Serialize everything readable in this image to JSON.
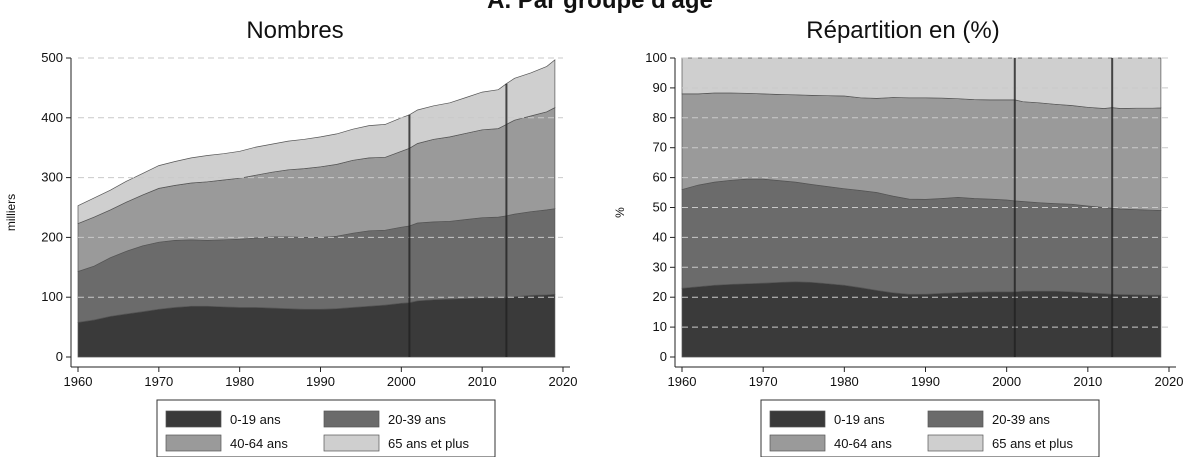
{
  "figure_title": "A. Par groupe d'âge",
  "colors": {
    "0-19 ans": "#3a3a3a",
    "20-39 ans": "#6b6b6b",
    "40-64 ans": "#9a9a9a",
    "65 ans et plus": "#cfcfcf"
  },
  "chart_data": [
    {
      "type": "area",
      "stacked": true,
      "title": "Nombres",
      "xlabel": "",
      "ylabel": "milliers",
      "xlim": [
        1960,
        2020
      ],
      "ylim": [
        0,
        500
      ],
      "xticks": [
        1960,
        1970,
        1980,
        1990,
        2000,
        2010,
        2020
      ],
      "yticks": [
        0,
        100,
        200,
        300,
        400,
        500
      ],
      "grid": "horizontal dashed",
      "legend": "bottom",
      "x": [
        1960,
        1962,
        1964,
        1966,
        1968,
        1970,
        1972,
        1974,
        1976,
        1978,
        1980,
        1982,
        1984,
        1986,
        1988,
        1990,
        1992,
        1994,
        1996,
        1998,
        2000,
        2001,
        2002,
        2004,
        2006,
        2008,
        2010,
        2012,
        2013,
        2014,
        2016,
        2018,
        2019
      ],
      "series": [
        {
          "name": "0-19 ans",
          "values": [
            58,
            62,
            68,
            72,
            76,
            80,
            83,
            85,
            85,
            84,
            83,
            83,
            82,
            81,
            80,
            80,
            81,
            83,
            85,
            87,
            90,
            91,
            94,
            96,
            97,
            98,
            99,
            99,
            99,
            101,
            103,
            104,
            105
          ]
        },
        {
          "name": "20-39 ans",
          "values": [
            85,
            90,
            98,
            105,
            110,
            112,
            112,
            111,
            110,
            112,
            114,
            116,
            119,
            120,
            120,
            120,
            121,
            124,
            126,
            125,
            127,
            128,
            130,
            130,
            130,
            132,
            134,
            135,
            137,
            138,
            140,
            142,
            143
          ]
        },
        {
          "name": "40-64 ans",
          "values": [
            80,
            82,
            80,
            82,
            85,
            90,
            92,
            95,
            98,
            100,
            102,
            105,
            108,
            112,
            115,
            118,
            120,
            122,
            122,
            122,
            127,
            130,
            133,
            138,
            141,
            144,
            147,
            148,
            153,
            157,
            160,
            164,
            169
          ]
        },
        {
          "name": "65 ans et plus",
          "values": [
            30,
            32,
            33,
            35,
            36,
            38,
            40,
            42,
            44,
            44,
            45,
            47,
            47,
            48,
            49,
            50,
            51,
            52,
            54,
            55,
            56,
            56,
            56,
            56,
            57,
            60,
            63,
            65,
            68,
            70,
            72,
            76,
            80
          ]
        }
      ],
      "vlines": [
        2001,
        2013
      ]
    },
    {
      "type": "area",
      "stacked": true,
      "title": "Répartition en (%)",
      "xlabel": "",
      "ylabel": "%",
      "xlim": [
        1960,
        2020
      ],
      "ylim": [
        0,
        100
      ],
      "xticks": [
        1960,
        1970,
        1980,
        1990,
        2000,
        2010,
        2020
      ],
      "yticks": [
        0,
        10,
        20,
        30,
        40,
        50,
        60,
        70,
        80,
        90,
        100
      ],
      "grid": "horizontal dashed",
      "legend": "bottom",
      "x": [
        1960,
        1962,
        1964,
        1966,
        1968,
        1970,
        1972,
        1974,
        1976,
        1978,
        1980,
        1982,
        1984,
        1986,
        1988,
        1990,
        1992,
        1994,
        1996,
        1998,
        2000,
        2001,
        2002,
        2004,
        2006,
        2008,
        2010,
        2012,
        2013,
        2014,
        2016,
        2018,
        2019
      ],
      "series": [
        {
          "name": "0-19 ans",
          "values": [
            23,
            23.5,
            24,
            24.3,
            24.5,
            24.7,
            25,
            25.2,
            25,
            24.5,
            24,
            23.2,
            22.3,
            21.5,
            21,
            21,
            21.3,
            21.5,
            21.7,
            21.8,
            21.8,
            21.8,
            22,
            22,
            22,
            21.8,
            21.5,
            21.2,
            21,
            20.9,
            20.8,
            20.7,
            20.7
          ]
        },
        {
          "name": "20-39 ans",
          "values": [
            33,
            34,
            34.5,
            34.8,
            35,
            34.8,
            34,
            33.3,
            32.7,
            32.5,
            32.3,
            32.5,
            32.7,
            32.3,
            31.8,
            31.7,
            31.7,
            31.9,
            31.3,
            31,
            30.7,
            30.4,
            30,
            29.6,
            29.3,
            29.3,
            29,
            28.8,
            28.7,
            28.6,
            28.5,
            28.4,
            28.3
          ]
        },
        {
          "name": "40-64 ans",
          "values": [
            32,
            30.5,
            29.8,
            29.2,
            28.7,
            28.5,
            28.8,
            29.2,
            29.8,
            30.4,
            31,
            31,
            31.5,
            33,
            33.9,
            34,
            33.6,
            33,
            33.1,
            33.2,
            33.5,
            33.8,
            33.4,
            33.4,
            33.2,
            33,
            33,
            33.1,
            33.7,
            33.6,
            33.9,
            34.1,
            34.3
          ]
        },
        {
          "name": "65 ans et plus",
          "values": [
            12,
            12,
            11.7,
            11.7,
            11.8,
            12,
            12.2,
            12.3,
            12.5,
            12.6,
            12.7,
            13.3,
            13.5,
            13.2,
            13.3,
            13.3,
            13.4,
            13.6,
            13.9,
            14,
            14,
            14,
            14.6,
            15,
            15.5,
            15.9,
            16.5,
            16.9,
            16.6,
            16.9,
            16.8,
            16.8,
            16.7
          ]
        }
      ],
      "vlines": [
        2001,
        2013
      ]
    }
  ]
}
